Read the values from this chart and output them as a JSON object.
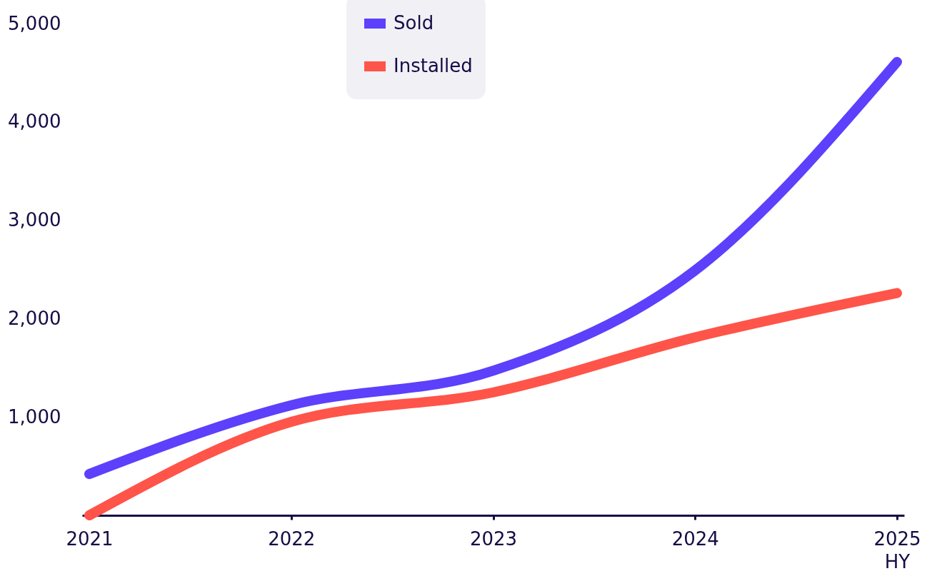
{
  "chart_data": {
    "type": "line",
    "categories": [
      "2021",
      "2022",
      "2023",
      "2024",
      "2025\nHY"
    ],
    "series": [
      {
        "name": "Sold",
        "color": "#5c40fb",
        "values": [
          420,
          1120,
          1470,
          2490,
          4610
        ]
      },
      {
        "name": "Installed",
        "color": "#ff5449",
        "values": [
          0,
          950,
          1250,
          1810,
          2260
        ]
      }
    ],
    "ylim": [
      0,
      5000
    ],
    "yticks": [
      {
        "value": 1000,
        "label": "1,000"
      },
      {
        "value": 2000,
        "label": "2,000"
      },
      {
        "value": 3000,
        "label": "3,000"
      },
      {
        "value": 4000,
        "label": "4,000"
      },
      {
        "value": 5000,
        "label": "5,000"
      }
    ],
    "grid": false,
    "legend": "top",
    "marker": "none",
    "line_style": "solid"
  }
}
